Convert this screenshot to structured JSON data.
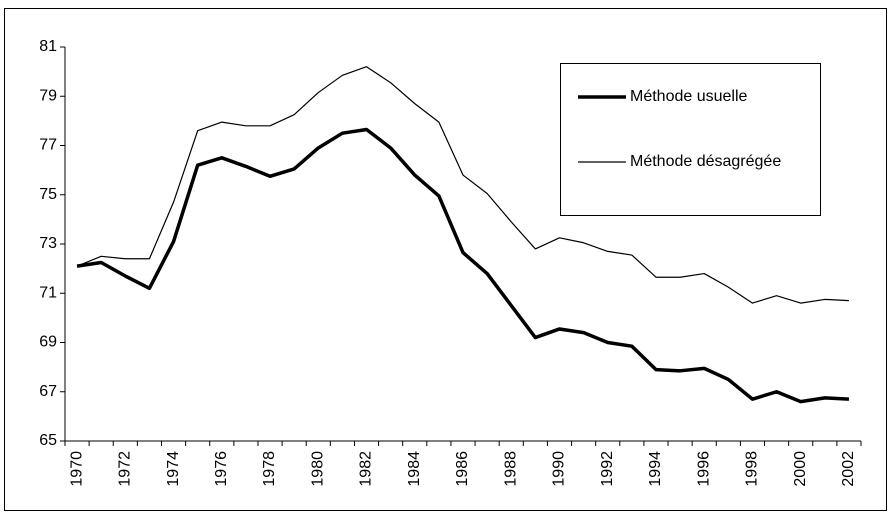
{
  "chart_data": {
    "type": "line",
    "categories": [
      "1970",
      null,
      "1972",
      null,
      "1974",
      null,
      "1976",
      null,
      "1978",
      null,
      "1980",
      null,
      "1982",
      null,
      "1984",
      null,
      "1986",
      null,
      "1988",
      null,
      "1990",
      null,
      "1992",
      null,
      "1994",
      null,
      "1996",
      null,
      "1998",
      null,
      "2000",
      null,
      "2002"
    ],
    "series": [
      {
        "name": "Méthode usuelle",
        "color": "#000000",
        "line_width": 3.5,
        "values": [
          72.1,
          72.25,
          71.7,
          71.2,
          73.1,
          76.2,
          76.5,
          76.15,
          75.75,
          76.05,
          76.9,
          77.5,
          77.65,
          76.9,
          75.8,
          74.95,
          72.65,
          71.8,
          70.5,
          69.2,
          69.55,
          69.4,
          69.0,
          68.85,
          67.9,
          67.85,
          67.95,
          67.5,
          66.7,
          67.0,
          66.6,
          66.75,
          66.7
        ]
      },
      {
        "name": "Méthode désagrégée",
        "color": "#000000",
        "line_width": 1.2,
        "values": [
          72.1,
          72.5,
          72.4,
          72.4,
          74.7,
          77.6,
          77.95,
          77.8,
          77.8,
          78.25,
          79.15,
          79.85,
          80.2,
          79.55,
          78.7,
          77.95,
          75.8,
          75.05,
          73.9,
          72.8,
          73.25,
          73.05,
          72.7,
          72.55,
          71.65,
          71.65,
          71.8,
          71.25,
          70.6,
          70.9,
          70.6,
          70.75,
          70.7
        ]
      }
    ],
    "ylim": [
      65,
      81
    ],
    "yticks": [
      65,
      67,
      69,
      71,
      73,
      75,
      77,
      79,
      81
    ],
    "grid": false
  }
}
